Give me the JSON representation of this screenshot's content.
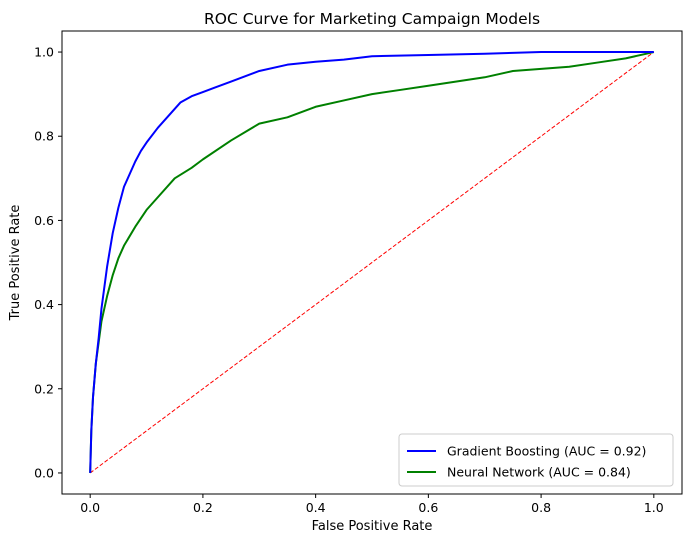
{
  "chart_data": {
    "type": "line",
    "title": "ROC Curve for Marketing Campaign Models",
    "xlabel": "False Positive Rate",
    "ylabel": "True Positive Rate",
    "xlim": [
      -0.05,
      1.05
    ],
    "ylim": [
      -0.05,
      1.05
    ],
    "xticks": [
      0.0,
      0.2,
      0.4,
      0.6,
      0.8,
      1.0
    ],
    "xtick_labels": [
      "0.0",
      "0.2",
      "0.4",
      "0.6",
      "0.8",
      "1.0"
    ],
    "yticks": [
      0.0,
      0.2,
      0.4,
      0.6,
      0.8,
      1.0
    ],
    "ytick_labels": [
      "0.0",
      "0.2",
      "0.4",
      "0.6",
      "0.8",
      "1.0"
    ],
    "grid": false,
    "legend_position": "lower-right",
    "series": [
      {
        "name": "Gradient Boosting (AUC = 0.92)",
        "color": "#0000ff",
        "style": "solid",
        "x": [
          0.0,
          0.002,
          0.005,
          0.01,
          0.015,
          0.02,
          0.03,
          0.04,
          0.05,
          0.06,
          0.07,
          0.08,
          0.09,
          0.1,
          0.12,
          0.14,
          0.16,
          0.18,
          0.2,
          0.22,
          0.25,
          0.28,
          0.3,
          0.35,
          0.4,
          0.45,
          0.5,
          0.6,
          0.7,
          0.8,
          0.9,
          1.0
        ],
        "y": [
          0.0,
          0.1,
          0.18,
          0.26,
          0.32,
          0.39,
          0.49,
          0.57,
          0.63,
          0.68,
          0.71,
          0.74,
          0.765,
          0.785,
          0.82,
          0.85,
          0.88,
          0.895,
          0.905,
          0.915,
          0.93,
          0.945,
          0.955,
          0.97,
          0.977,
          0.982,
          0.99,
          0.993,
          0.996,
          1.0,
          1.0,
          1.0
        ]
      },
      {
        "name": "Neural Network (AUC = 0.84)",
        "color": "#008000",
        "style": "solid",
        "x": [
          0.0,
          0.002,
          0.005,
          0.01,
          0.015,
          0.02,
          0.03,
          0.04,
          0.05,
          0.06,
          0.08,
          0.1,
          0.12,
          0.15,
          0.18,
          0.2,
          0.25,
          0.3,
          0.35,
          0.4,
          0.45,
          0.5,
          0.55,
          0.6,
          0.65,
          0.7,
          0.75,
          0.8,
          0.85,
          0.9,
          0.95,
          1.0
        ],
        "y": [
          0.0,
          0.1,
          0.18,
          0.26,
          0.31,
          0.36,
          0.42,
          0.47,
          0.51,
          0.54,
          0.585,
          0.625,
          0.655,
          0.7,
          0.725,
          0.745,
          0.79,
          0.83,
          0.845,
          0.87,
          0.885,
          0.9,
          0.91,
          0.92,
          0.93,
          0.94,
          0.955,
          0.96,
          0.965,
          0.975,
          0.985,
          1.0
        ]
      },
      {
        "name": "",
        "color": "#ff0000",
        "style": "dashed",
        "x": [
          0.0,
          1.0
        ],
        "y": [
          0.0,
          1.0
        ]
      }
    ]
  }
}
